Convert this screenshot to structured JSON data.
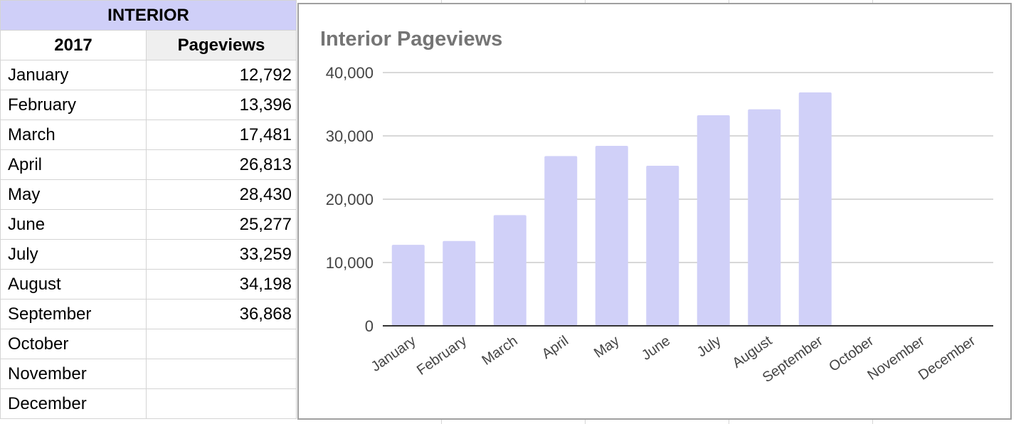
{
  "table": {
    "title": "INTERIOR",
    "year_header": "2017",
    "value_header": "Pageviews",
    "rows": [
      {
        "month": "January",
        "pageviews": "12,792"
      },
      {
        "month": "February",
        "pageviews": "13,396"
      },
      {
        "month": "March",
        "pageviews": "17,481"
      },
      {
        "month": "April",
        "pageviews": "26,813"
      },
      {
        "month": "May",
        "pageviews": "28,430"
      },
      {
        "month": "June",
        "pageviews": "25,277"
      },
      {
        "month": "July",
        "pageviews": "33,259"
      },
      {
        "month": "August",
        "pageviews": "34,198"
      },
      {
        "month": "September",
        "pageviews": "36,868"
      },
      {
        "month": "October",
        "pageviews": ""
      },
      {
        "month": "November",
        "pageviews": ""
      },
      {
        "month": "December",
        "pageviews": ""
      }
    ]
  },
  "colors": {
    "bar": "#d0d0f8",
    "header_fill": "#cfcff8",
    "chart_border": "#a0a0a0"
  },
  "chart_data": {
    "type": "bar",
    "title": "Interior Pageviews",
    "xlabel": "",
    "ylabel": "",
    "categories": [
      "January",
      "February",
      "March",
      "April",
      "May",
      "June",
      "July",
      "August",
      "September",
      "October",
      "November",
      "December"
    ],
    "values": [
      12792,
      13396,
      17481,
      26813,
      28430,
      25277,
      33259,
      34198,
      36868,
      null,
      null,
      null
    ],
    "ylim": [
      0,
      40000
    ],
    "yticks": [
      "0",
      "10,000",
      "20,000",
      "30,000",
      "40,000"
    ],
    "grid": true,
    "legend": "none"
  }
}
